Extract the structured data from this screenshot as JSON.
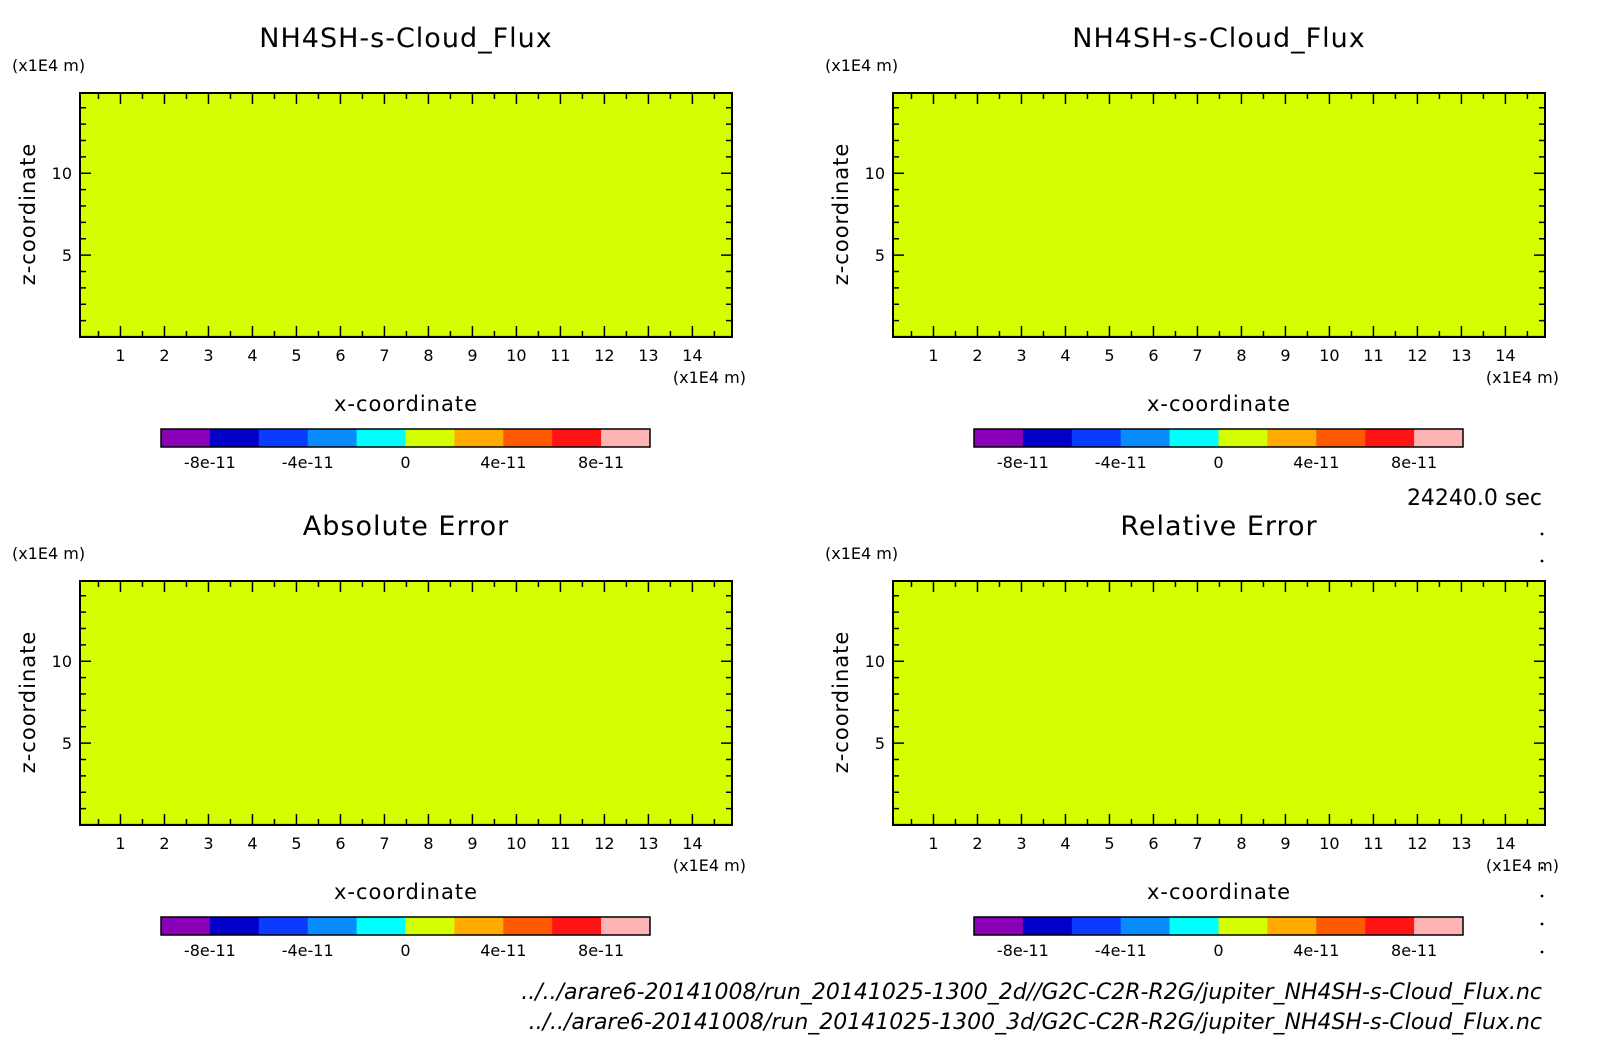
{
  "chart_data": [
    {
      "type": "heatmap",
      "title": "NH4SH-s-Cloud_Flux",
      "xlabel": "x-coordinate",
      "ylabel": "z-coordinate",
      "x_unit": "(x1E4 m)",
      "y_unit": "(x1E4 m)",
      "x_ticks": [
        1,
        2,
        3,
        4,
        5,
        6,
        7,
        8,
        9,
        10,
        11,
        12,
        13,
        14
      ],
      "y_ticks": [
        5,
        10
      ],
      "xlim": [
        0.08,
        14.9
      ],
      "ylim": [
        0,
        14.9
      ],
      "field_value": 0,
      "colorbar_ticks": [
        "-8e-11",
        "-4e-11",
        "0",
        "4e-11",
        "8e-11"
      ]
    },
    {
      "type": "heatmap",
      "title": "NH4SH-s-Cloud_Flux",
      "xlabel": "x-coordinate",
      "ylabel": "z-coordinate",
      "x_unit": "(x1E4 m)",
      "y_unit": "(x1E4 m)",
      "x_ticks": [
        1,
        2,
        3,
        4,
        5,
        6,
        7,
        8,
        9,
        10,
        11,
        12,
        13,
        14
      ],
      "y_ticks": [
        5,
        10
      ],
      "xlim": [
        0.08,
        14.9
      ],
      "ylim": [
        0,
        14.9
      ],
      "field_value": 0,
      "colorbar_ticks": [
        "-8e-11",
        "-4e-11",
        "0",
        "4e-11",
        "8e-11"
      ]
    },
    {
      "type": "heatmap",
      "title": "Absolute Error",
      "xlabel": "x-coordinate",
      "ylabel": "z-coordinate",
      "x_unit": "(x1E4 m)",
      "y_unit": "(x1E4 m)",
      "x_ticks": [
        1,
        2,
        3,
        4,
        5,
        6,
        7,
        8,
        9,
        10,
        11,
        12,
        13,
        14
      ],
      "y_ticks": [
        5,
        10
      ],
      "xlim": [
        0.08,
        14.9
      ],
      "ylim": [
        0,
        14.9
      ],
      "field_value": 0,
      "colorbar_ticks": [
        "-8e-11",
        "-4e-11",
        "0",
        "4e-11",
        "8e-11"
      ]
    },
    {
      "type": "heatmap",
      "title": "Relative Error",
      "xlabel": "x-coordinate",
      "ylabel": "z-coordinate",
      "x_unit": "(x1E4 m)",
      "y_unit": "(x1E4 m)",
      "x_ticks": [
        1,
        2,
        3,
        4,
        5,
        6,
        7,
        8,
        9,
        10,
        11,
        12,
        13,
        14
      ],
      "y_ticks": [
        5,
        10
      ],
      "xlim": [
        0.08,
        14.9
      ],
      "ylim": [
        0,
        14.9
      ],
      "field_value": 0,
      "colorbar_ticks": [
        "-8e-11",
        "-4e-11",
        "0",
        "4e-11",
        "8e-11"
      ]
    }
  ],
  "colorbar_colors": [
    "#8a00b8",
    "#0000c8",
    "#0a3cff",
    "#0a8cff",
    "#00ffff",
    "#d4ff00",
    "#ffaa00",
    "#ff5a00",
    "#ff1414",
    "#ffb4b4"
  ],
  "field_color": "#d4ff00",
  "time_label": "24240.0 sec",
  "files": [
    "../../arare6-20141008/run_20141025-1300_2d//G2C-C2R-R2G/jupiter_NH4SH-s-Cloud_Flux.nc",
    "../../arare6-20141008/run_20141025-1300_3d/G2C-C2R-R2G/jupiter_NH4SH-s-Cloud_Flux.nc"
  ]
}
